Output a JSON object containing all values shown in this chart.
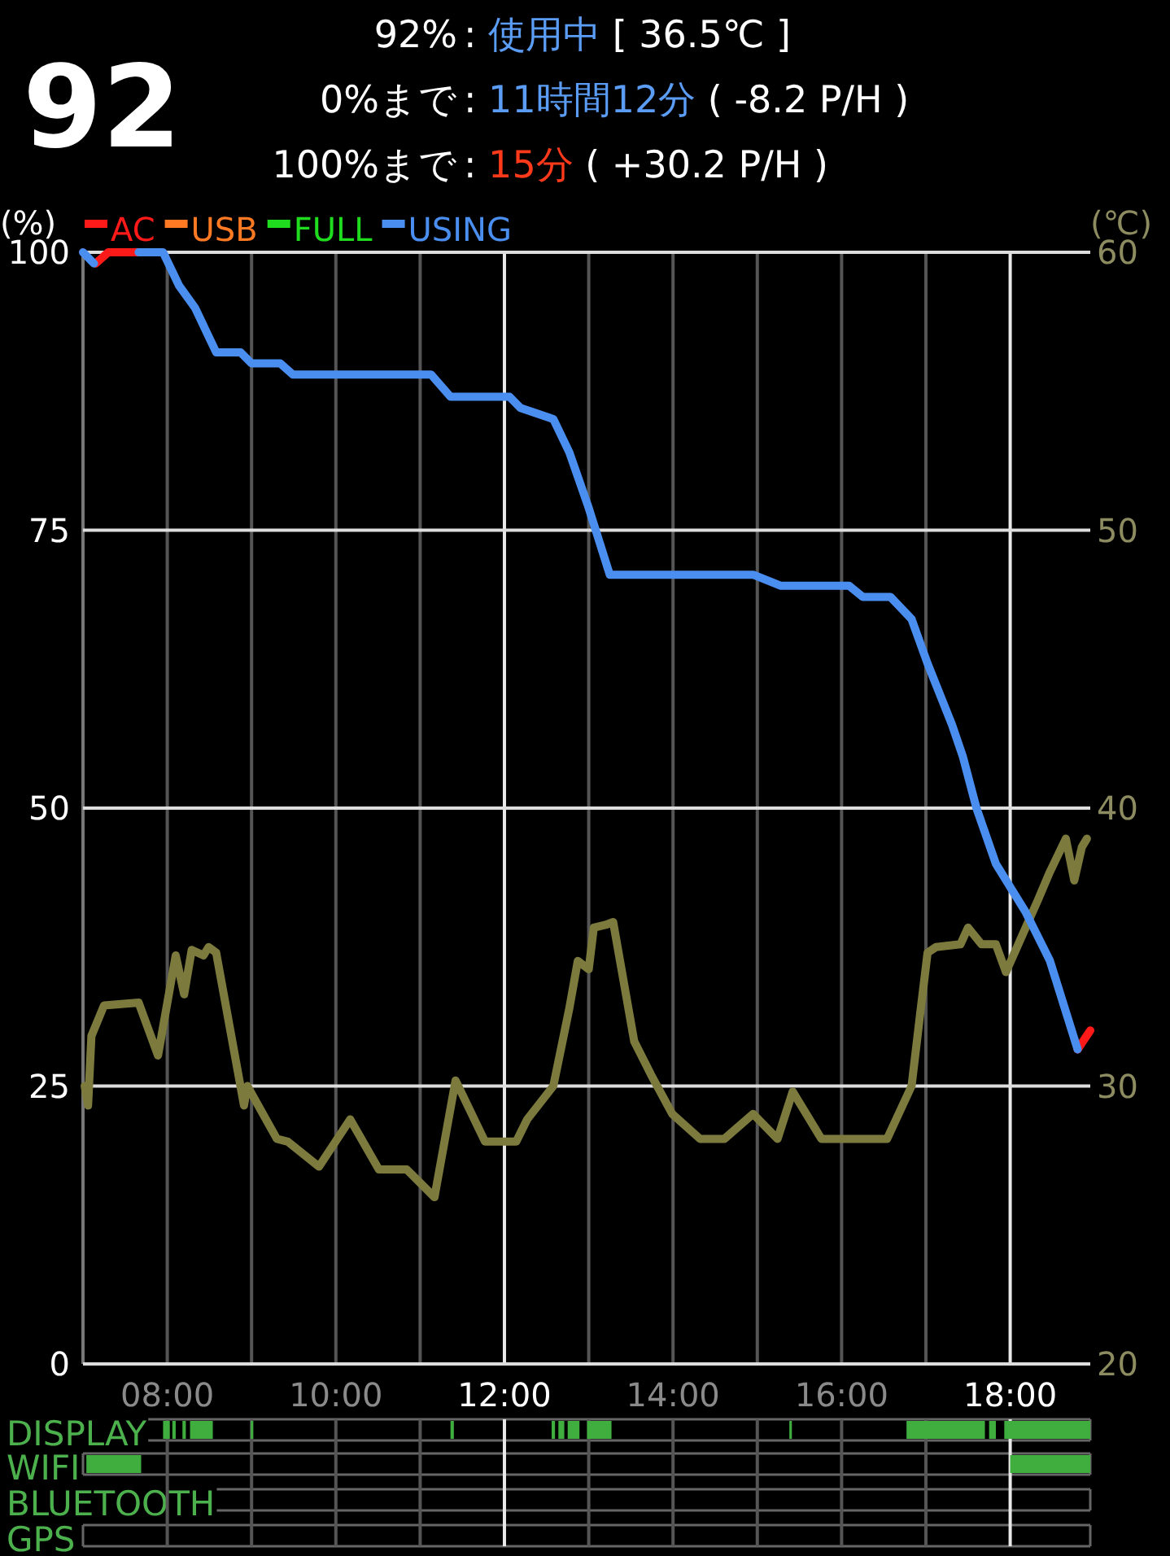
{
  "chart_data": [
    {
      "type": "line",
      "title": "92",
      "annotations": [
        "92%",
        ":",
        "使用中",
        "[ 36.5℃ ]",
        "0%まで",
        ":",
        "11時間12分",
        "( -8.2 P/H )",
        "100%まで",
        ":",
        "15分",
        "( +30.2 P/H )"
      ],
      "ylabel": "(%)",
      "y2label": "(℃)",
      "xlim": [
        7,
        18.95
      ],
      "xticks": [
        {
          "value": 8,
          "label": "08:00"
        },
        {
          "value": 9,
          "label": null
        },
        {
          "value": 10,
          "label": "10:00"
        },
        {
          "value": 11,
          "label": null
        },
        {
          "value": 12,
          "label": "12:00"
        },
        {
          "value": 13,
          "label": null
        },
        {
          "value": 14,
          "label": "14:00"
        },
        {
          "value": 15,
          "label": null
        },
        {
          "value": 16,
          "label": "16:00"
        },
        {
          "value": 17,
          "label": null
        },
        {
          "value": 18,
          "label": "18:00"
        }
      ],
      "ylim": [
        0,
        100
      ],
      "yticks": [
        0,
        25,
        50,
        75,
        100
      ],
      "y2lim": [
        20,
        60
      ],
      "y2ticks": [
        20,
        30,
        40,
        50,
        60
      ],
      "grid": true,
      "legend": "top left",
      "marker": "none",
      "line_style": "solid",
      "series": [
        {
          "color": "#7d7a3e",
          "axis": "y2",
          "x": [
            7.02,
            7.06,
            7.1,
            7.25,
            7.66,
            7.89,
            8.1,
            8.2,
            8.29,
            8.43,
            8.49,
            8.58,
            8.91,
            8.95,
            9.3,
            9.43,
            9.8,
            10.17,
            10.51,
            10.84,
            11.17,
            11.42,
            11.77,
            12.14,
            12.27,
            12.58,
            12.77,
            12.87,
            13.0,
            13.06,
            13.2,
            13.29,
            13.54,
            13.74,
            13.99,
            14.32,
            14.61,
            14.95,
            15.24,
            15.42,
            15.76,
            16.54,
            16.83,
            16.94,
            17.02,
            17.12,
            17.41,
            17.5,
            17.66,
            17.83,
            17.95,
            18.14,
            18.33,
            18.47,
            18.66,
            18.76,
            18.85,
            18.91
          ],
          "values": [
            30.0,
            29.3,
            31.8,
            32.9,
            33.0,
            31.1,
            34.7,
            33.3,
            34.9,
            34.7,
            35.0,
            34.8,
            29.3,
            30.0,
            28.1,
            28.0,
            27.1,
            28.8,
            27.0,
            27.0,
            26.0,
            30.2,
            28.0,
            28.0,
            28.8,
            30.0,
            32.8,
            34.5,
            34.2,
            35.7,
            35.8,
            35.9,
            31.6,
            30.4,
            29.0,
            28.1,
            28.1,
            29.0,
            28.1,
            29.8,
            28.1,
            28.1,
            30.0,
            32.8,
            34.8,
            35.0,
            35.1,
            35.7,
            35.1,
            35.1,
            34.1,
            35.4,
            36.7,
            37.7,
            38.9,
            37.4,
            38.6,
            38.9
          ]
        },
        {
          "name": "AC",
          "color": "#ff1a1a",
          "x": [
            7.15,
            7.3,
            7.65,
            7.7,
            18.8,
            18.95
          ],
          "values": [
            99,
            100,
            100,
            null,
            28.3,
            30
          ]
        },
        {
          "name": "USB",
          "color": "#ff7a22"
        },
        {
          "name": "FULL",
          "color": "#1fdc1f"
        },
        {
          "name": "USING",
          "color": "#4a8ef0",
          "x": [
            7.0,
            7.13,
            7.4,
            7.66,
            7.95,
            8.14,
            8.33,
            8.58,
            8.87,
            9.0,
            9.34,
            9.49,
            11.13,
            11.36,
            12.06,
            12.19,
            12.58,
            12.77,
            13.0,
            13.25,
            14.95,
            15.28,
            16.09,
            16.25,
            16.58,
            16.83,
            17.02,
            17.31,
            17.44,
            17.6,
            17.83,
            18.18,
            18.47,
            18.8
          ],
          "values": [
            100,
            99,
            null,
            100,
            100,
            97,
            95,
            91,
            91,
            90,
            90,
            89,
            89,
            87,
            87,
            86,
            85,
            82,
            77,
            71,
            71,
            70,
            70,
            69,
            69,
            67,
            63,
            57.5,
            54.6,
            50,
            45,
            40.7,
            36.3,
            28.3
          ]
        }
      ]
    },
    {
      "type": "bar",
      "orientation": "horizontal",
      "categories": [
        "DISPLAY",
        "WIFI",
        "BLUETOOTH",
        "GPS"
      ],
      "xlim": [
        7,
        18.95
      ],
      "xticks": [
        {
          "value": 8,
          "label": null
        },
        {
          "value": 9,
          "label": null
        },
        {
          "value": 10,
          "label": null
        },
        {
          "value": 11,
          "label": null
        },
        {
          "value": 12,
          "label": null
        },
        {
          "value": 13,
          "label": null
        },
        {
          "value": 14,
          "label": null
        },
        {
          "value": 15,
          "label": null
        },
        {
          "value": 16,
          "label": null
        },
        {
          "value": 17,
          "label": null
        },
        {
          "value": 18,
          "label": null
        }
      ],
      "grid": true,
      "tick_labels": "y",
      "series": [
        {
          "color": "#3fae3f",
          "base": [
            7.95,
            7.04,
            null,
            null
          ],
          "values": [
            0.08,
            0.65,
            null,
            null
          ]
        },
        {
          "color": "#3fae3f",
          "base": [
            8.06,
            18.0,
            null,
            null
          ],
          "values": [
            0.04,
            0.95,
            null,
            null
          ]
        },
        {
          "color": "#3fae3f",
          "base": [
            8.18,
            null,
            null,
            null
          ],
          "values": [
            0.04,
            null,
            null,
            null
          ]
        },
        {
          "color": "#3fae3f",
          "base": [
            8.27,
            null,
            null,
            null
          ],
          "values": [
            0.27,
            null,
            null,
            null
          ]
        },
        {
          "color": "#3fae3f",
          "base": [
            8.99,
            null,
            null,
            null
          ],
          "values": [
            0.03,
            null,
            null,
            null
          ]
        },
        {
          "color": "#3fae3f",
          "base": [
            11.36,
            null,
            null,
            null
          ],
          "values": [
            0.04,
            null,
            null,
            null
          ]
        },
        {
          "color": "#3fae3f",
          "base": [
            12.56,
            null,
            null,
            null
          ],
          "values": [
            0.04,
            null,
            null,
            null
          ]
        },
        {
          "color": "#3fae3f",
          "base": [
            12.64,
            null,
            null,
            null
          ],
          "values": [
            0.07,
            null,
            null,
            null
          ]
        },
        {
          "color": "#3fae3f",
          "base": [
            12.75,
            null,
            null,
            null
          ],
          "values": [
            0.14,
            null,
            null,
            null
          ]
        },
        {
          "color": "#3fae3f",
          "base": [
            12.98,
            null,
            null,
            null
          ],
          "values": [
            0.29,
            null,
            null,
            null
          ]
        },
        {
          "color": "#3fae3f",
          "base": [
            15.38,
            null,
            null,
            null
          ],
          "values": [
            0.03,
            null,
            null,
            null
          ]
        },
        {
          "color": "#3fae3f",
          "base": [
            16.77,
            null,
            null,
            null
          ],
          "values": [
            0.93,
            null,
            null,
            null
          ]
        },
        {
          "color": "#3fae3f",
          "base": [
            17.75,
            null,
            null,
            null
          ],
          "values": [
            0.08,
            null,
            null,
            null
          ]
        },
        {
          "color": "#3fae3f",
          "base": [
            17.93,
            null,
            null,
            null
          ],
          "values": [
            1.02,
            null,
            null,
            null
          ]
        }
      ]
    }
  ]
}
